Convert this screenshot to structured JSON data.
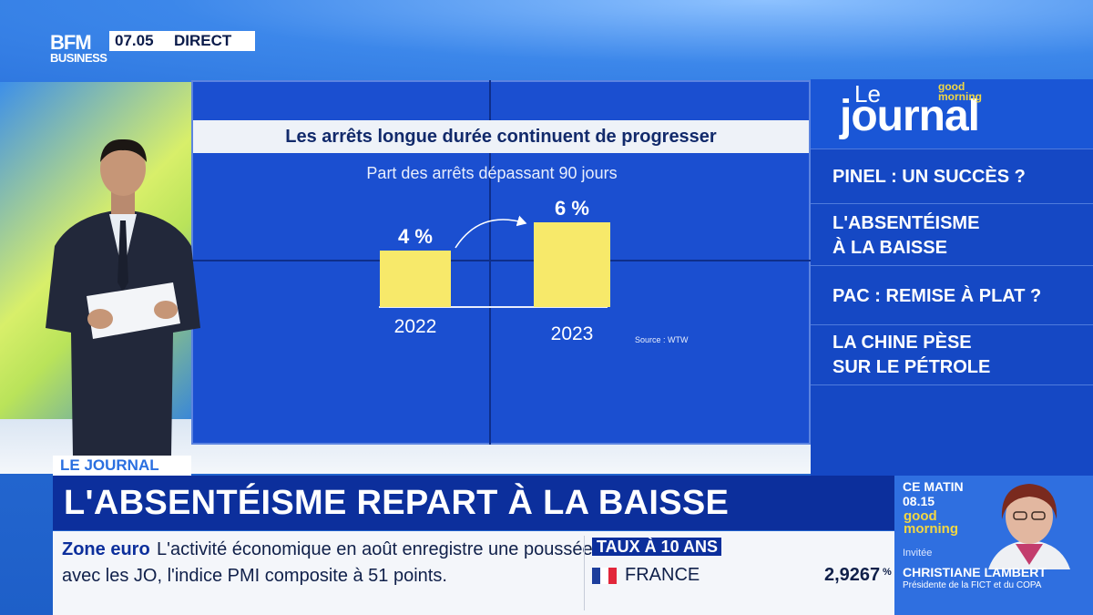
{
  "channel": {
    "logo_top": "BFM",
    "logo_bottom": "BUSINESS",
    "time": "07.05",
    "live": "DIRECT"
  },
  "screen_chart": {
    "title": "Les arrêts longue durée continuent de progresser",
    "subtitle": "Part des arrêts dépassant 90 jours",
    "source": "Source : WTW"
  },
  "chart_data": {
    "type": "bar",
    "title": "Les arrêts longue durée continuent de progresser",
    "subtitle": "Part des arrêts dépassant 90 jours",
    "categories": [
      "2022",
      "2023"
    ],
    "values": [
      4,
      6
    ],
    "value_labels": [
      "4 %",
      "6 %"
    ],
    "unit": "%",
    "ylim": [
      0,
      7
    ],
    "grid": false,
    "bar_color": "#f7e96a",
    "annotation": "arrow from 2022 to 2023"
  },
  "rail": {
    "le": "Le",
    "journal": "journal",
    "gm_top": "good",
    "gm_bottom": "morning",
    "items": [
      {
        "lines": [
          "PINEL : UN SUCCÈS ?"
        ]
      },
      {
        "lines": [
          "L'ABSENTÉISME",
          "À LA BAISSE"
        ]
      },
      {
        "lines": [
          "PAC : REMISE À PLAT ?"
        ]
      },
      {
        "lines": [
          "LA CHINE PÈSE",
          "SUR LE PÉTROLE"
        ]
      }
    ]
  },
  "lower_third": {
    "tag": "LE JOURNAL",
    "headline": "L'ABSENTÉISME REPART À LA BAISSE"
  },
  "ticker": {
    "label": "Zone euro",
    "line1": "L'activité économique en août enregistre une poussée",
    "line2": "avec les JO, l'indice PMI composite à 51 points."
  },
  "rates": {
    "label": "TAUX À 10 ANS",
    "country": "FRANCE",
    "value": "2,9267",
    "unit": "%"
  },
  "guest": {
    "ce_matin": "CE MATIN",
    "time": "08.15",
    "gm_top": "good",
    "gm_bottom": "morning",
    "invitee": "Invitée",
    "name": "CHRISTIANE LAMBERT",
    "role": "Présidente de la FICT et du COPA"
  },
  "colors": {
    "accent_blue": "#0c2f9c",
    "bar_yellow": "#f7e96a",
    "brand_yellow": "#f2d743"
  }
}
